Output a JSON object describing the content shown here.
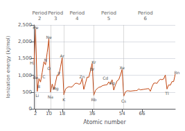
{
  "chart_data": {
    "type": "line",
    "title": "",
    "xlabel": "Atomic number",
    "ylabel": "Ionization energy (kJ/mol)",
    "color": "#c1440e",
    "xlim": [
      1,
      86
    ],
    "ylim": [
      0,
      2500
    ],
    "xticks": [
      2,
      10,
      18,
      36,
      54,
      66
    ],
    "yticks": [
      0,
      500,
      1000,
      1500,
      2000,
      2500
    ],
    "grid": true,
    "period_lines": [
      2,
      11,
      19,
      37,
      55
    ],
    "period_labels": [
      {
        "text": "Period\n2",
        "x": 4.5
      },
      {
        "text": "Period\n3",
        "x": 14
      },
      {
        "text": "Period\n4",
        "x": 27
      },
      {
        "text": "Period\n5",
        "x": 46
      },
      {
        "text": "Period\n6",
        "x": 68
      }
    ],
    "annotations": [
      {
        "text": "H",
        "x": 1,
        "y": 1312,
        "dx": -1.5,
        "dy": 60
      },
      {
        "text": "He",
        "x": 2,
        "y": 2372,
        "dx": 0,
        "dy": 60
      },
      {
        "text": "Li",
        "x": 3,
        "y": 520,
        "dx": 0,
        "dy": -120
      },
      {
        "text": "Be",
        "x": 4,
        "y": 900,
        "dx": -2,
        "dy": 50
      },
      {
        "text": "B",
        "x": 5,
        "y": 800,
        "dx": -1,
        "dy": -120
      },
      {
        "text": "C",
        "x": 6,
        "y": 1086,
        "dx": 1,
        "dy": -120
      },
      {
        "text": "N",
        "x": 7,
        "y": 1402,
        "dx": 1,
        "dy": 50
      },
      {
        "text": "O",
        "x": 8,
        "y": 1314,
        "dx": 2,
        "dy": -110
      },
      {
        "text": "Ne",
        "x": 10,
        "y": 2081,
        "dx": 0,
        "dy": 60
      },
      {
        "text": "Na",
        "x": 11,
        "y": 496,
        "dx": 0,
        "dy": -130
      },
      {
        "text": "Mg",
        "x": 12,
        "y": 738,
        "dx": 2,
        "dy": -120
      },
      {
        "text": "P",
        "x": 15,
        "y": 1011,
        "dx": 1,
        "dy": 50
      },
      {
        "text": "Ar",
        "x": 18,
        "y": 1521,
        "dx": 0,
        "dy": 50
      },
      {
        "text": "K",
        "x": 19,
        "y": 419,
        "dx": 0,
        "dy": -130
      },
      {
        "text": "Zn",
        "x": 30,
        "y": 906,
        "dx": 0,
        "dy": 50
      },
      {
        "text": "Br",
        "x": 35,
        "y": 1140,
        "dx": 1,
        "dy": 50
      },
      {
        "text": "Kr",
        "x": 36,
        "y": 1351,
        "dx": 1,
        "dy": 50
      },
      {
        "text": "Rb",
        "x": 37,
        "y": 403,
        "dx": 0,
        "dy": -130
      },
      {
        "text": "Ag",
        "x": 47,
        "y": 731,
        "dx": 1,
        "dy": 50
      },
      {
        "text": "Cd",
        "x": 48,
        "y": 868,
        "dx": -4,
        "dy": 50
      },
      {
        "text": "Xe",
        "x": 54,
        "y": 1170,
        "dx": 0,
        "dy": 50
      },
      {
        "text": "Cs",
        "x": 55,
        "y": 376,
        "dx": 0,
        "dy": -130
      },
      {
        "text": "Tl",
        "x": 81,
        "y": 589,
        "dx": 0,
        "dy": -130
      },
      {
        "text": "Rn",
        "x": 86,
        "y": 1037,
        "dx": 1,
        "dy": 50
      }
    ],
    "x": [
      1,
      2,
      3,
      4,
      5,
      6,
      7,
      8,
      9,
      10,
      11,
      12,
      13,
      14,
      15,
      16,
      17,
      18,
      19,
      20,
      21,
      22,
      23,
      24,
      25,
      26,
      27,
      28,
      29,
      30,
      31,
      32,
      33,
      34,
      35,
      36,
      37,
      38,
      39,
      40,
      41,
      42,
      43,
      44,
      45,
      46,
      47,
      48,
      49,
      50,
      51,
      52,
      53,
      54,
      55,
      56,
      57,
      58,
      59,
      60,
      61,
      62,
      63,
      64,
      65,
      66,
      67,
      68,
      69,
      70,
      71,
      72,
      73,
      74,
      75,
      76,
      77,
      78,
      79,
      80,
      81,
      82,
      83,
      84,
      85,
      86
    ],
    "values": [
      1312,
      2372,
      520,
      900,
      800,
      1086,
      1402,
      1314,
      1681,
      2081,
      496,
      738,
      577,
      786,
      1011,
      1000,
      1251,
      1521,
      419,
      590,
      633,
      659,
      650,
      653,
      717,
      762,
      760,
      737,
      745,
      906,
      579,
      762,
      947,
      941,
      1140,
      1351,
      403,
      550,
      600,
      640,
      652,
      684,
      702,
      711,
      719,
      804,
      731,
      868,
      558,
      709,
      834,
      869,
      1008,
      1170,
      376,
      503,
      538,
      534,
      527,
      533,
      540,
      544,
      547,
      592,
      565,
      573,
      581,
      589,
      597,
      603,
      523,
      658,
      761,
      770,
      758,
      840,
      880,
      870,
      890,
      1007,
      589,
      715,
      703,
      812,
      812,
      1037
    ]
  }
}
